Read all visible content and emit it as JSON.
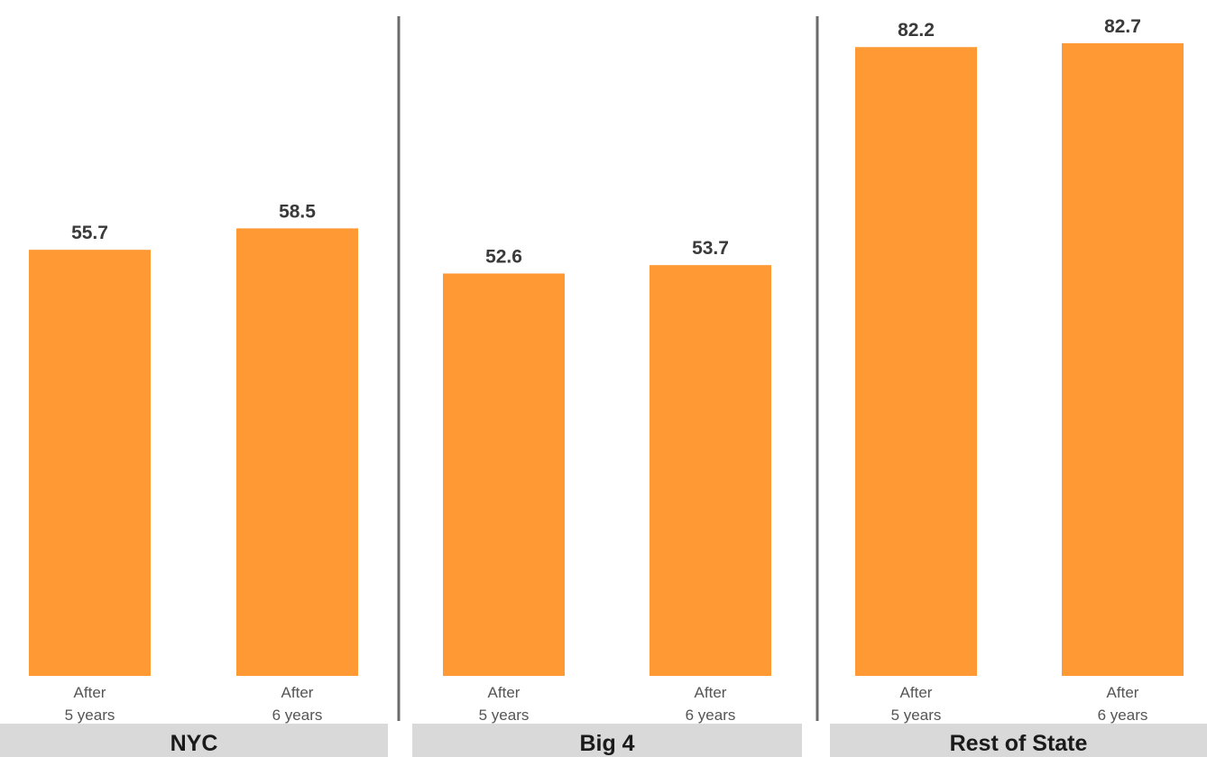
{
  "chart_data": {
    "type": "bar",
    "groups": [
      {
        "name": "NYC",
        "categories": [
          [
            "After",
            "5 years"
          ],
          [
            "After",
            "6 years"
          ]
        ],
        "values": [
          55.7,
          58.5
        ]
      },
      {
        "name": "Big 4",
        "categories": [
          [
            "After",
            "5 years"
          ],
          [
            "After",
            "6 years"
          ]
        ],
        "values": [
          52.6,
          53.7
        ]
      },
      {
        "name": "Rest of State",
        "categories": [
          [
            "After",
            "5 years"
          ],
          [
            "After",
            "6 years"
          ]
        ],
        "values": [
          82.2,
          82.7
        ]
      }
    ],
    "ylim": [
      0,
      85
    ],
    "grid": false,
    "bar_color": "#ff9933",
    "separator_color": "#6b6b6b",
    "group_label_background": "#d9d9d9"
  }
}
